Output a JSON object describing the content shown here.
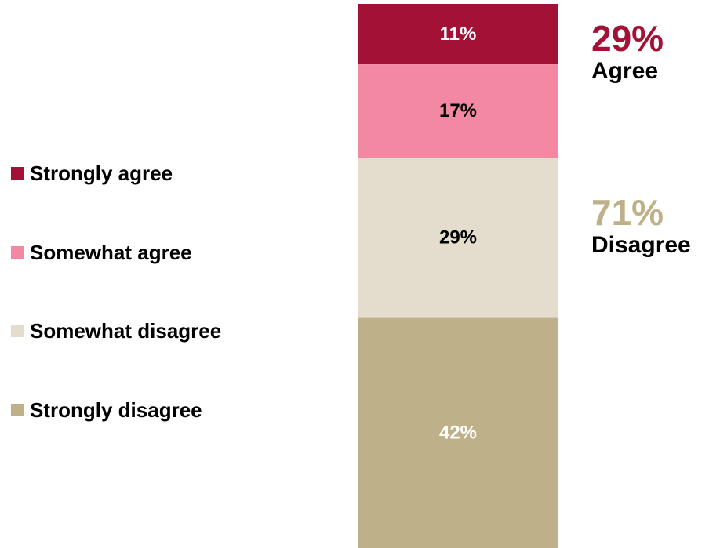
{
  "chart_data": {
    "type": "bar",
    "stacked": true,
    "categories": [
      ""
    ],
    "series": [
      {
        "name": "Strongly agree",
        "values": [
          11
        ],
        "color": "#A31236",
        "label": "11%",
        "label_color": "#ffffff"
      },
      {
        "name": "Somewhat agree",
        "values": [
          17
        ],
        "color": "#F388A3",
        "label": "17%",
        "label_color": "#000000"
      },
      {
        "name": "Somewhat disagree",
        "values": [
          29
        ],
        "color": "#E4DDCE",
        "label": "29%",
        "label_color": "#000000"
      },
      {
        "name": "Strongly disagree",
        "values": [
          42
        ],
        "color": "#BEB088",
        "label": "42%",
        "label_color": "#ffffff"
      }
    ],
    "title": "",
    "xlabel": "",
    "ylabel": "",
    "legend_position": "left",
    "grid": false
  },
  "summaries": [
    {
      "percent": "29%",
      "label": "Agree",
      "color": "#A31236"
    },
    {
      "percent": "71%",
      "label": "Disagree",
      "color": "#BEB088"
    }
  ]
}
